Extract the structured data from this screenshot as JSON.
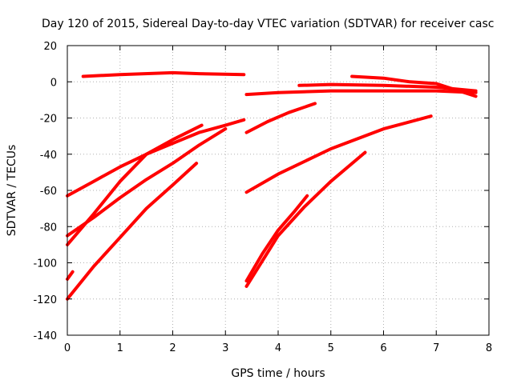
{
  "chart_data": {
    "type": "line",
    "title": "Day 120 of 2015, Sidereal Day-to-day VTEC variation (SDTVAR) for receiver casc",
    "xlabel": "GPS time / hours",
    "ylabel": "SDTVAR / TECUs",
    "xlim": [
      0,
      8
    ],
    "ylim": [
      -140,
      20
    ],
    "xticks": [
      0,
      1,
      2,
      3,
      4,
      5,
      6,
      7,
      8
    ],
    "yticks": [
      -140,
      -120,
      -100,
      -80,
      -60,
      -40,
      -20,
      0,
      20
    ],
    "grid": true,
    "legend": "none",
    "color": "#ff0000",
    "series": [
      {
        "x": [
          0.3,
          1.0,
          2.0,
          2.5,
          3.35
        ],
        "y": [
          3,
          4,
          5,
          4.5,
          4
        ]
      },
      {
        "x": [
          0.0,
          0.5,
          1.0,
          1.5,
          2.0,
          2.5,
          3.0,
          3.35
        ],
        "y": [
          -63,
          -55,
          -47,
          -40,
          -34,
          -28,
          -24,
          -21
        ]
      },
      {
        "x": [
          0.0,
          0.5,
          1.0,
          1.5,
          2.0,
          2.5,
          3.0
        ],
        "y": [
          -85,
          -75,
          -64,
          -54,
          -45,
          -35,
          -26
        ]
      },
      {
        "x": [
          0.0,
          0.5,
          1.0,
          1.5,
          2.0,
          2.55
        ],
        "y": [
          -90,
          -73,
          -55,
          -40,
          -32,
          -24
        ]
      },
      {
        "x": [
          0.0,
          0.5,
          1.0,
          1.5,
          2.0,
          2.45
        ],
        "y": [
          -120,
          -102,
          -86,
          -70,
          -57,
          -45
        ]
      },
      {
        "x": [
          0.0,
          0.1
        ],
        "y": [
          -109,
          -105
        ]
      },
      {
        "x": [
          3.4,
          3.8,
          4.2,
          4.7
        ],
        "y": [
          -28,
          -22,
          -17,
          -12
        ]
      },
      {
        "x": [
          3.4,
          4.0,
          5.0,
          6.0,
          6.9
        ],
        "y": [
          -61,
          -51,
          -37,
          -26,
          -19
        ]
      },
      {
        "x": [
          3.4,
          4.0,
          5.0,
          6.0,
          7.0,
          7.75
        ],
        "y": [
          -7,
          -6,
          -5,
          -5,
          -5,
          -6
        ]
      },
      {
        "x": [
          4.4,
          5.0,
          6.0,
          7.0,
          7.75
        ],
        "y": [
          -2,
          -1.5,
          -2,
          -3,
          -5
        ]
      },
      {
        "x": [
          5.4,
          6.0,
          6.5,
          7.0,
          7.75
        ],
        "y": [
          3,
          2,
          0,
          -1,
          -8
        ]
      },
      {
        "x": [
          3.4,
          3.7,
          4.0,
          4.3,
          4.55
        ],
        "y": [
          -110,
          -95,
          -82,
          -72,
          -63
        ]
      },
      {
        "x": [
          3.4,
          4.0,
          4.5,
          5.0,
          5.65
        ],
        "y": [
          -113,
          -85,
          -69,
          -55,
          -39
        ]
      }
    ]
  }
}
